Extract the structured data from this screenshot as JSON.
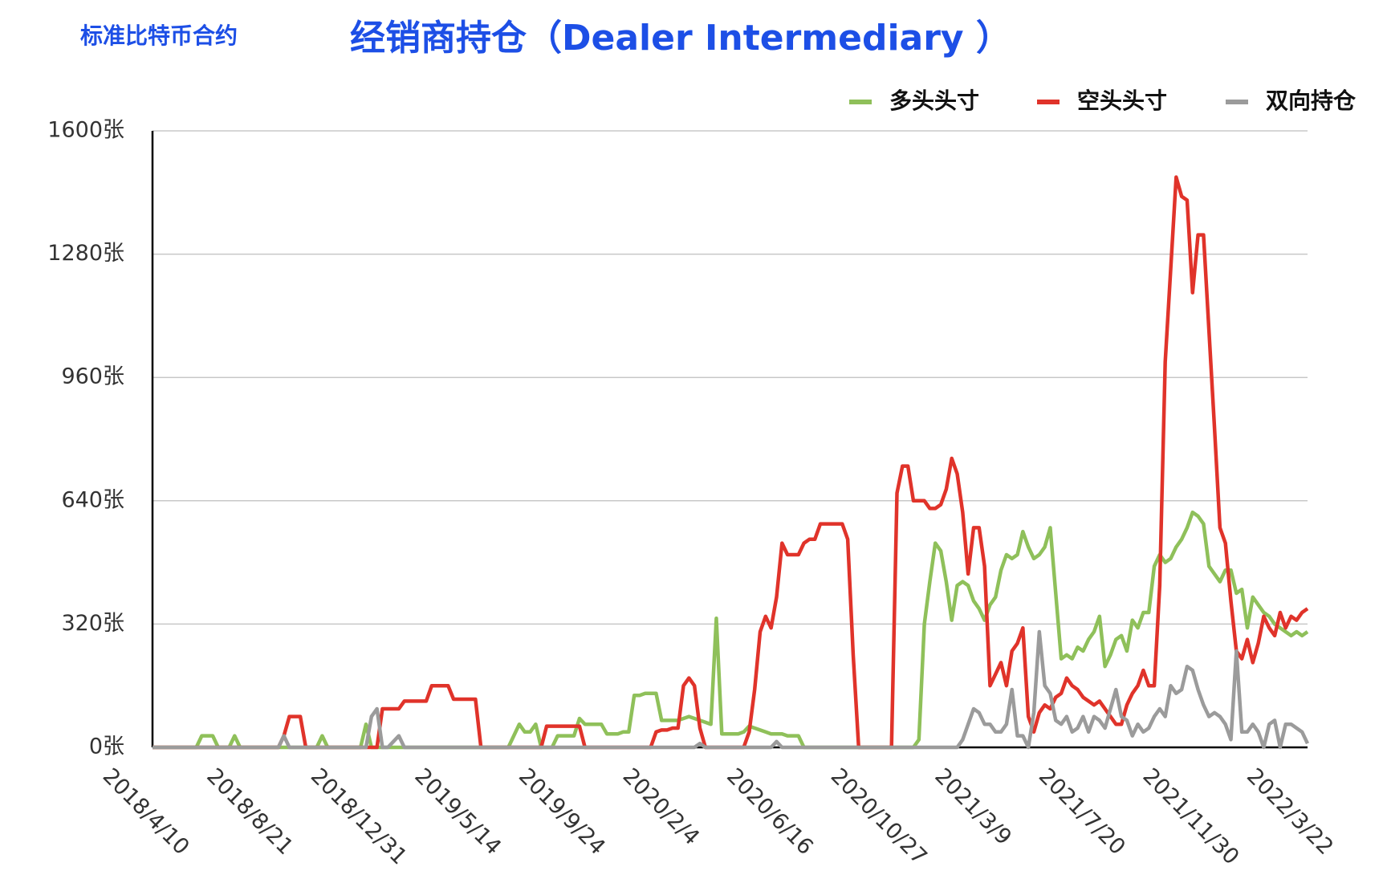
{
  "chart_data": {
    "type": "line",
    "subtitle": "标准比特币合约",
    "title": "经销商持仓（Dealer Intermediary ）",
    "categories": [
      "2018/4/10",
      null,
      null,
      null,
      null,
      null,
      null,
      null,
      null,
      null,
      null,
      null,
      null,
      null,
      null,
      null,
      null,
      null,
      null,
      "2018/8/21",
      null,
      null,
      null,
      null,
      null,
      null,
      null,
      null,
      null,
      null,
      null,
      null,
      null,
      null,
      null,
      null,
      null,
      null,
      "2018/12/31",
      null,
      null,
      null,
      null,
      null,
      null,
      null,
      null,
      null,
      null,
      null,
      null,
      null,
      null,
      null,
      null,
      null,
      null,
      "2019/5/14",
      null,
      null,
      null,
      null,
      null,
      null,
      null,
      null,
      null,
      null,
      null,
      null,
      null,
      null,
      null,
      null,
      null,
      null,
      "2019/9/24",
      null,
      null,
      null,
      null,
      null,
      null,
      null,
      null,
      null,
      null,
      null,
      null,
      null,
      null,
      null,
      null,
      null,
      null,
      "2020/2/4",
      null,
      null,
      null,
      null,
      null,
      null,
      null,
      null,
      null,
      null,
      null,
      null,
      null,
      null,
      null,
      null,
      null,
      null,
      "2020/6/16",
      null,
      null,
      null,
      null,
      null,
      null,
      null,
      null,
      null,
      null,
      null,
      null,
      null,
      null,
      null,
      null,
      null,
      null,
      "2020/10/27",
      null,
      null,
      null,
      null,
      null,
      null,
      null,
      null,
      null,
      null,
      null,
      null,
      null,
      null,
      null,
      null,
      null,
      null,
      "2021/3/9",
      null,
      null,
      null,
      null,
      null,
      null,
      null,
      null,
      null,
      null,
      null,
      null,
      null,
      null,
      null,
      null,
      null,
      null,
      "2021/7/20",
      null,
      null,
      null,
      null,
      null,
      null,
      null,
      null,
      null,
      null,
      null,
      null,
      null,
      null,
      null,
      null,
      null,
      null,
      "2021/11/30",
      null,
      null,
      null,
      null,
      null,
      null,
      null,
      null,
      null,
      null,
      null,
      null,
      null,
      null,
      null,
      null,
      null,
      null,
      "2022/3/22",
      null,
      null
    ],
    "series": [
      {
        "name": "多头头寸",
        "color": "#8fc05a",
        "values": [
          0,
          0,
          0,
          0,
          0,
          0,
          0,
          0,
          0,
          30,
          30,
          30,
          0,
          0,
          0,
          30,
          0,
          0,
          0,
          0,
          0,
          0,
          0,
          0,
          0,
          0,
          0,
          0,
          0,
          0,
          0,
          30,
          0,
          0,
          0,
          0,
          0,
          0,
          0,
          60,
          0,
          0,
          0,
          0,
          0,
          0,
          0,
          0,
          0,
          0,
          0,
          0,
          0,
          0,
          0,
          0,
          0,
          0,
          0,
          0,
          0,
          0,
          0,
          0,
          0,
          0,
          30,
          60,
          40,
          40,
          60,
          0,
          0,
          0,
          30,
          30,
          30,
          30,
          75,
          60,
          60,
          60,
          60,
          35,
          35,
          35,
          40,
          40,
          135,
          135,
          140,
          140,
          140,
          70,
          70,
          70,
          70,
          75,
          80,
          75,
          70,
          65,
          60,
          335,
          35,
          35,
          35,
          35,
          40,
          55,
          50,
          45,
          40,
          35,
          35,
          35,
          30,
          30,
          30,
          0,
          0,
          0,
          0,
          0,
          0,
          0,
          0,
          0,
          0,
          0,
          0,
          0,
          0,
          0,
          0,
          0,
          0,
          0,
          0,
          0,
          20,
          320,
          430,
          530,
          510,
          430,
          330,
          420,
          430,
          420,
          380,
          360,
          330,
          370,
          390,
          460,
          500,
          490,
          500,
          560,
          520,
          490,
          500,
          520,
          570,
          400,
          230,
          240,
          230,
          260,
          250,
          280,
          300,
          340,
          210,
          240,
          280,
          290,
          250,
          330,
          310,
          350,
          350,
          470,
          500,
          480,
          490,
          520,
          540,
          570,
          610,
          600,
          580,
          470,
          450,
          430,
          460,
          460,
          400,
          410,
          310,
          390,
          370,
          350,
          340,
          320,
          310,
          300,
          290,
          300,
          290,
          300
        ]
      },
      {
        "name": "空头头寸",
        "color": "#e0332a",
        "values": [
          0,
          0,
          0,
          0,
          0,
          0,
          0,
          0,
          0,
          0,
          0,
          0,
          0,
          0,
          0,
          0,
          0,
          0,
          0,
          0,
          0,
          0,
          0,
          0,
          30,
          80,
          80,
          80,
          0,
          0,
          0,
          0,
          0,
          0,
          0,
          0,
          0,
          0,
          0,
          0,
          0,
          0,
          100,
          100,
          100,
          100,
          120,
          120,
          120,
          120,
          120,
          160,
          160,
          160,
          160,
          125,
          125,
          125,
          125,
          125,
          0,
          0,
          0,
          0,
          0,
          0,
          0,
          0,
          0,
          0,
          0,
          0,
          55,
          55,
          55,
          55,
          55,
          55,
          55,
          0,
          0,
          0,
          0,
          0,
          0,
          0,
          0,
          0,
          0,
          0,
          0,
          0,
          40,
          45,
          45,
          50,
          50,
          160,
          180,
          160,
          50,
          0,
          0,
          0,
          0,
          0,
          0,
          0,
          0,
          40,
          150,
          300,
          340,
          310,
          390,
          530,
          500,
          500,
          500,
          530,
          540,
          540,
          580,
          580,
          580,
          580,
          580,
          540,
          240,
          0,
          0,
          0,
          0,
          0,
          0,
          0,
          660,
          730,
          730,
          640,
          640,
          640,
          620,
          620,
          630,
          670,
          750,
          710,
          610,
          450,
          570,
          570,
          470,
          160,
          190,
          220,
          160,
          250,
          270,
          310,
          80,
          40,
          90,
          110,
          100,
          130,
          140,
          180,
          160,
          150,
          130,
          120,
          110,
          120,
          100,
          80,
          60,
          60,
          110,
          140,
          160,
          200,
          160,
          160,
          420,
          1000,
          1240,
          1480,
          1430,
          1420,
          1180,
          1330,
          1330,
          1080,
          830,
          570,
          530,
          380,
          250,
          230,
          280,
          220,
          270,
          340,
          310,
          290,
          350,
          310,
          340,
          330,
          350,
          360
        ]
      },
      {
        "name": "双向持仓",
        "color": "#9b9b9b",
        "values": [
          0,
          0,
          0,
          0,
          0,
          0,
          0,
          0,
          0,
          0,
          0,
          0,
          0,
          0,
          0,
          0,
          0,
          0,
          0,
          0,
          0,
          0,
          0,
          0,
          30,
          0,
          0,
          0,
          0,
          0,
          0,
          0,
          0,
          0,
          0,
          0,
          0,
          0,
          0,
          0,
          80,
          100,
          0,
          0,
          15,
          30,
          0,
          0,
          0,
          0,
          0,
          0,
          0,
          0,
          0,
          0,
          0,
          0,
          0,
          0,
          0,
          0,
          0,
          0,
          0,
          0,
          0,
          0,
          0,
          0,
          0,
          0,
          0,
          0,
          0,
          0,
          0,
          0,
          0,
          0,
          0,
          0,
          0,
          0,
          0,
          0,
          0,
          0,
          0,
          0,
          0,
          0,
          0,
          0,
          0,
          0,
          0,
          0,
          0,
          0,
          10,
          0,
          0,
          0,
          0,
          0,
          0,
          0,
          0,
          0,
          0,
          0,
          0,
          0,
          15,
          0,
          0,
          0,
          0,
          0,
          0,
          0,
          0,
          0,
          0,
          0,
          0,
          0,
          0,
          0,
          0,
          0,
          0,
          0,
          0,
          0,
          0,
          0,
          0,
          0,
          0,
          0,
          0,
          0,
          0,
          0,
          0,
          0,
          20,
          60,
          100,
          90,
          60,
          60,
          40,
          40,
          60,
          150,
          30,
          30,
          0,
          90,
          300,
          160,
          140,
          70,
          60,
          80,
          40,
          50,
          80,
          40,
          80,
          70,
          50,
          100,
          150,
          80,
          70,
          30,
          60,
          40,
          50,
          80,
          100,
          80,
          160,
          140,
          150,
          210,
          200,
          150,
          110,
          80,
          90,
          80,
          60,
          20,
          250,
          40,
          40,
          60,
          40,
          0,
          60,
          70,
          0,
          60,
          60,
          50,
          40,
          10
        ]
      }
    ],
    "ylim": [
      0,
      1600
    ],
    "yticks": [
      {
        "value": 0,
        "label": "0张"
      },
      {
        "value": 320,
        "label": "320张"
      },
      {
        "value": 640,
        "label": "640张"
      },
      {
        "value": 960,
        "label": "960张"
      },
      {
        "value": 1280,
        "label": "1280张"
      },
      {
        "value": 1600,
        "label": "1600张"
      }
    ],
    "grid": true,
    "legend": "top-right"
  }
}
